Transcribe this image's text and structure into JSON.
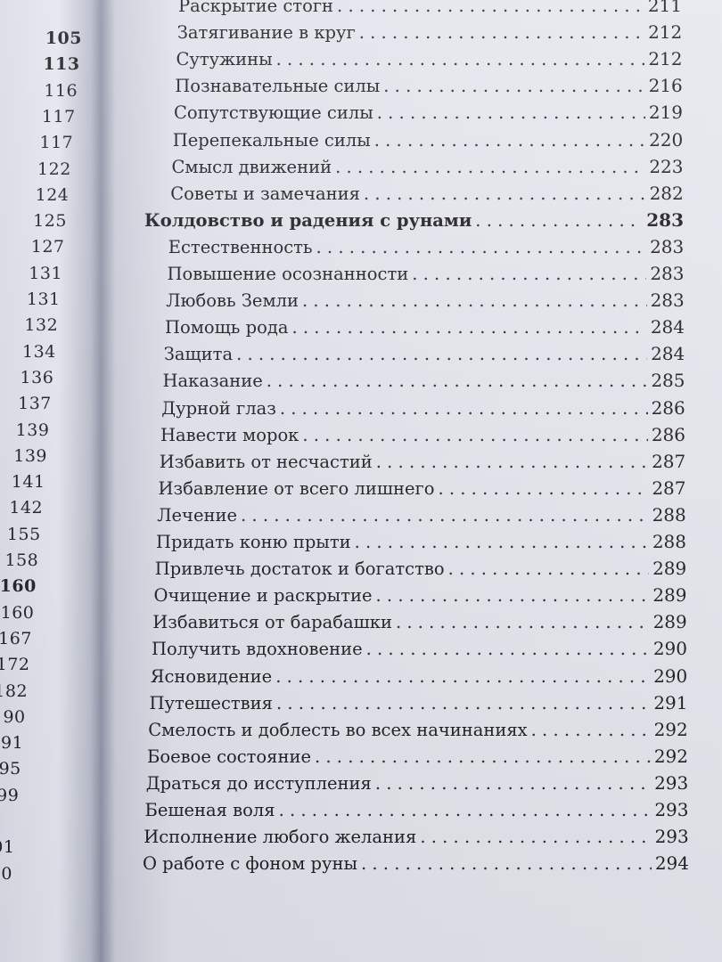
{
  "left_page": {
    "page_numbers": [
      {
        "value": "105",
        "bold": true
      },
      {
        "value": "113",
        "bold": true
      },
      {
        "value": "116"
      },
      {
        "value": "117"
      },
      {
        "value": "117"
      },
      {
        "value": "122"
      },
      {
        "value": "124"
      },
      {
        "value": "125"
      },
      {
        "value": "127"
      },
      {
        "value": "131"
      },
      {
        "value": "131"
      },
      {
        "value": "132"
      },
      {
        "value": "134"
      },
      {
        "value": "136"
      },
      {
        "value": "137"
      },
      {
        "value": "139"
      },
      {
        "value": "139"
      },
      {
        "value": "141"
      },
      {
        "value": "142"
      },
      {
        "value": "155"
      },
      {
        "value": "158"
      },
      {
        "value": "160",
        "bold": true
      },
      {
        "value": "160"
      },
      {
        "value": "167"
      },
      {
        "value": "172"
      },
      {
        "value": "182"
      },
      {
        "value": "90"
      },
      {
        "value": "91"
      },
      {
        "value": "95"
      },
      {
        "value": "99"
      },
      {
        "value": ""
      },
      {
        "value": "01"
      },
      {
        "value": "0"
      }
    ]
  },
  "toc": {
    "entries": [
      {
        "title": "Раскрытие стогн",
        "page": "211"
      },
      {
        "title": "Затягивание в круг",
        "page": "212"
      },
      {
        "title": "Сутужины",
        "page": "212"
      },
      {
        "title": "Познавательные силы",
        "page": "216"
      },
      {
        "title": "Сопутствующие силы",
        "page": "219"
      },
      {
        "title": "Перепекальные силы",
        "page": "220"
      },
      {
        "title": "Смысл движений",
        "page": "223"
      },
      {
        "title": "Советы и замечания",
        "page": "282"
      },
      {
        "title": "Колдовство и радения с рунами",
        "page": "283",
        "bold": true
      },
      {
        "title": "Естественность",
        "page": "283"
      },
      {
        "title": "Повышение осознанности",
        "page": "283"
      },
      {
        "title": "Любовь Земли",
        "page": "283"
      },
      {
        "title": "Помощь рода",
        "page": "284"
      },
      {
        "title": "Защита",
        "page": "284"
      },
      {
        "title": "Наказание",
        "page": "285"
      },
      {
        "title": "Дурной глаз",
        "page": "286"
      },
      {
        "title": "Навести морок",
        "page": "286"
      },
      {
        "title": "Избавить от несчастий",
        "page": "287"
      },
      {
        "title": "Избавление от всего лишнего",
        "page": "287"
      },
      {
        "title": "Лечение",
        "page": "288"
      },
      {
        "title": "Придать коню прыти",
        "page": "288"
      },
      {
        "title": "Привлечь достаток и богатство",
        "page": "289"
      },
      {
        "title": "Очищение и раскрытие",
        "page": "289"
      },
      {
        "title": "Избавиться от барабашки",
        "page": "289"
      },
      {
        "title": "Получить вдохновение",
        "page": "290"
      },
      {
        "title": "Ясновидение",
        "page": "290"
      },
      {
        "title": "Путешествия",
        "page": "291"
      },
      {
        "title": "Смелость и доблесть во всех начинаниях",
        "page": "292"
      },
      {
        "title": "Боевое состояние",
        "page": "292"
      },
      {
        "title": "Драться до исступления",
        "page": "293"
      },
      {
        "title": "Бешеная воля",
        "page": "293"
      },
      {
        "title": "Исполнение любого желания",
        "page": "293"
      },
      {
        "title": "О работе с фоном руны",
        "page": "294"
      }
    ]
  }
}
